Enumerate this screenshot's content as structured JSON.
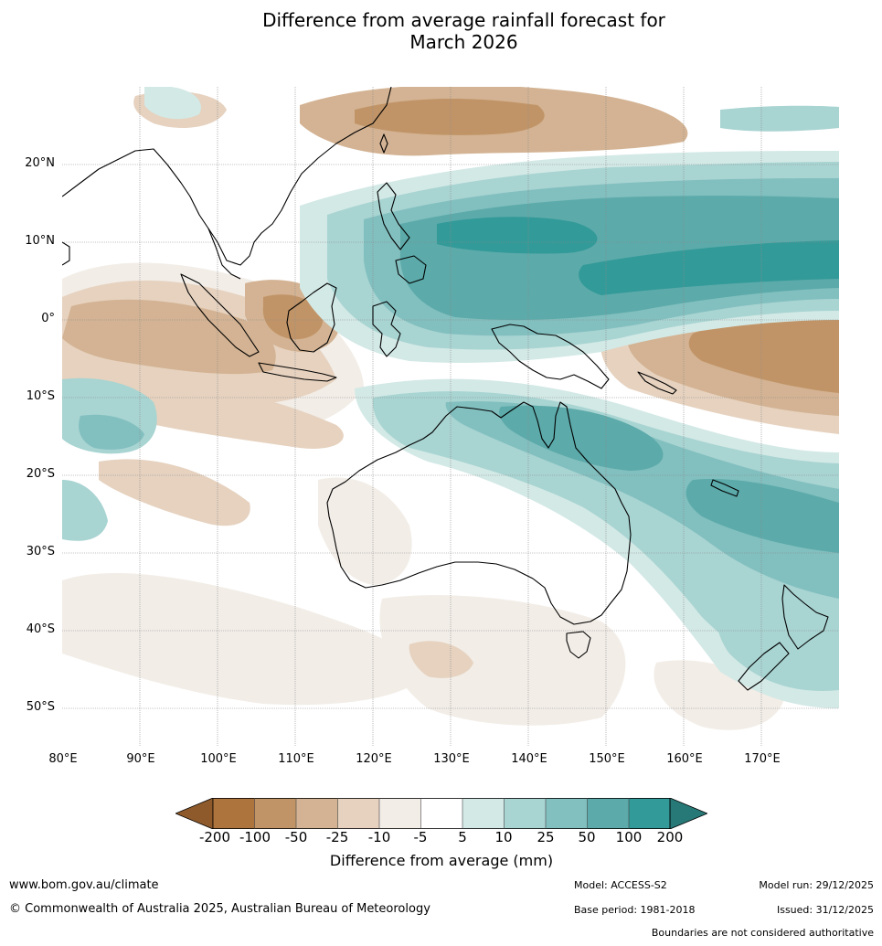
{
  "title_line1": "Difference from average rainfall forecast for",
  "title_line2": "March 2026",
  "map": {
    "lat_labels": [
      "20°N",
      "10°N",
      "0°",
      "10°S",
      "20°S",
      "30°S",
      "40°S",
      "50°S"
    ],
    "lon_labels": [
      "80°E",
      "90°E",
      "100°E",
      "110°E",
      "120°E",
      "130°E",
      "140°E",
      "150°E",
      "160°E",
      "170°E"
    ]
  },
  "legend": {
    "title": "Difference from average (mm)",
    "ticks": [
      "-200",
      "-100",
      "-50",
      "-25",
      "-10",
      "-5",
      "5",
      "10",
      "25",
      "50",
      "100",
      "200"
    ],
    "colors": {
      "lt_minus200": "#8e5a2b",
      "m200_m100": "#ad743d",
      "m100_m50": "#c19467",
      "m50_m25": "#d3b393",
      "m25_m10": "#e6d2bf",
      "m10_m5": "#f2ede7",
      "m5_p5": "#ffffff",
      "p5_p10": "#d3e9e6",
      "p10_p25": "#a8d4d2",
      "p25_p50": "#82bfbf",
      "p50_p100": "#5caaaa",
      "p100_p200": "#329a98",
      "gt_200": "#277977"
    }
  },
  "footer": {
    "website": "www.bom.gov.au/climate",
    "copyright": "© Commonwealth of Australia 2025, Australian Bureau of Meteorology",
    "model": "Model: ACCESS-S2",
    "base_period": "Base period: 1981-2018",
    "model_run": "Model run: 29/12/2025",
    "issued": "Issued: 31/12/2025",
    "disclaimer": "Boundaries are not considered authoritative"
  }
}
